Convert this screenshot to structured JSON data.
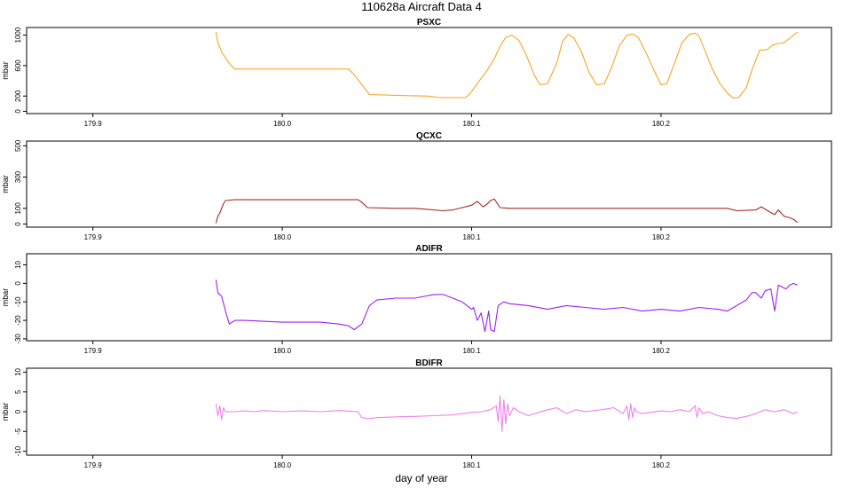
{
  "title": "110628a   Aircraft Data 4",
  "xlabel": "day of year",
  "chart_data": [
    {
      "type": "line",
      "title": "PSXC",
      "ylabel": "mbar",
      "color": "#F5A623",
      "xlim": [
        179.865,
        180.29
      ],
      "ylim": [
        -30,
        1100
      ],
      "x_ticks": [
        "179.9",
        "180.0",
        "180.1",
        "180.2"
      ],
      "y_ticks": [
        "0",
        "200",
        "600",
        "1000"
      ],
      "y_tick_values": [
        0,
        200,
        600,
        1000
      ],
      "series": [
        {
          "x": [
            179.965,
            179.966,
            179.968,
            179.97,
            179.973,
            179.975,
            179.98,
            180.0,
            180.02,
            180.035,
            180.038,
            180.042,
            180.046,
            180.06,
            180.077,
            180.083,
            180.097,
            180.1,
            180.104,
            180.108,
            180.112,
            180.115,
            180.118,
            180.121,
            180.125,
            180.129,
            180.133,
            180.136,
            180.14,
            180.145,
            180.148,
            180.151,
            180.154,
            180.158,
            180.162,
            180.166,
            180.17,
            180.174,
            180.178,
            180.182,
            180.185,
            180.188,
            180.192,
            180.197,
            180.2,
            180.203,
            180.207,
            180.211,
            180.215,
            180.218,
            180.22,
            180.223,
            180.227,
            180.231,
            180.235,
            180.238,
            180.241,
            180.245,
            180.248,
            180.252,
            180.256,
            180.259,
            180.262,
            180.265,
            180.268,
            180.272
          ],
          "y": [
            1040,
            900,
            780,
            700,
            600,
            555,
            555,
            555,
            555,
            555,
            480,
            350,
            220,
            210,
            200,
            180,
            180,
            260,
            400,
            530,
            690,
            850,
            970,
            1000,
            930,
            730,
            480,
            350,
            360,
            640,
            920,
            1010,
            960,
            780,
            510,
            350,
            360,
            580,
            860,
            1000,
            1015,
            970,
            770,
            500,
            350,
            360,
            620,
            900,
            1010,
            1025,
            990,
            810,
            560,
            370,
            240,
            175,
            180,
            310,
            540,
            800,
            810,
            870,
            890,
            900,
            960,
            1040
          ]
        }
      ]
    },
    {
      "type": "line",
      "title": "QCXC",
      "ylabel": "mbar",
      "color": "#A52A2A",
      "xlim": [
        179.865,
        180.29
      ],
      "ylim": [
        -20,
        530
      ],
      "x_ticks": [
        "179.9",
        "180.0",
        "180.1",
        "180.2"
      ],
      "y_ticks": [
        "0",
        "100",
        "300",
        "500"
      ],
      "y_tick_values": [
        0,
        100,
        300,
        500
      ],
      "series": [
        {
          "x": [
            179.965,
            179.966,
            179.967,
            179.969,
            179.97,
            179.975,
            180.0,
            180.02,
            180.035,
            180.04,
            180.042,
            180.045,
            180.06,
            180.07,
            180.075,
            180.085,
            180.09,
            180.095,
            180.1,
            180.103,
            180.106,
            180.108,
            180.11,
            180.112,
            180.115,
            180.12,
            180.15,
            180.2,
            180.22,
            180.235,
            180.24,
            180.25,
            180.253,
            180.257,
            180.26,
            180.262,
            180.265,
            180.268,
            180.27,
            180.272
          ],
          "y": [
            5,
            50,
            70,
            130,
            150,
            155,
            155,
            155,
            155,
            155,
            140,
            105,
            100,
            100,
            95,
            85,
            90,
            105,
            120,
            145,
            110,
            125,
            150,
            160,
            105,
            100,
            100,
            100,
            100,
            100,
            85,
            90,
            110,
            80,
            60,
            90,
            50,
            40,
            30,
            10
          ]
        }
      ]
    },
    {
      "type": "line",
      "title": "ADIFR",
      "ylabel": "mbar",
      "color": "#A020F0",
      "xlim": [
        179.865,
        180.29
      ],
      "ylim": [
        -31,
        16
      ],
      "x_ticks": [
        "179.9",
        "180.0",
        "180.1",
        "180.2"
      ],
      "y_ticks": [
        "-30",
        "-20",
        "-10",
        "0",
        "10"
      ],
      "y_tick_values": [
        -30,
        -20,
        -10,
        0,
        10
      ],
      "series": [
        {
          "x": [
            179.965,
            179.966,
            179.968,
            179.97,
            179.972,
            179.975,
            179.98,
            180.0,
            180.02,
            180.03,
            180.035,
            180.038,
            180.042,
            180.046,
            180.05,
            180.06,
            180.07,
            180.075,
            180.08,
            180.085,
            180.09,
            180.095,
            180.1,
            180.101,
            180.103,
            180.105,
            180.107,
            180.109,
            180.11,
            180.112,
            180.114,
            180.117,
            180.12,
            180.13,
            180.14,
            180.15,
            180.16,
            180.17,
            180.18,
            180.19,
            180.2,
            180.21,
            180.22,
            180.23,
            180.235,
            180.24,
            180.245,
            180.248,
            180.25,
            180.253,
            180.255,
            180.258,
            180.26,
            180.262,
            180.264,
            180.266,
            180.268,
            180.27,
            180.272
          ],
          "y": [
            2,
            -5,
            -7,
            -15,
            -22,
            -20,
            -20,
            -21,
            -21,
            -22,
            -23,
            -25,
            -22,
            -12,
            -9,
            -8,
            -8,
            -7,
            -6,
            -6,
            -8,
            -10,
            -14,
            -13,
            -20,
            -16,
            -26,
            -15,
            -25,
            -26,
            -12,
            -10,
            -11,
            -12,
            -14,
            -12,
            -13,
            -14,
            -13,
            -15,
            -14,
            -15,
            -13,
            -14,
            -15,
            -12,
            -9,
            -5,
            -5,
            -8,
            -4,
            -3,
            -15,
            -1,
            -2,
            -3,
            -1,
            0,
            -1
          ]
        }
      ]
    },
    {
      "type": "line",
      "title": "BDIFR",
      "ylabel": "mbar",
      "color": "#EE82EE",
      "xlim": [
        179.865,
        180.29
      ],
      "ylim": [
        -11,
        11
      ],
      "x_ticks": [
        "179.9",
        "180.0",
        "180.1",
        "180.2"
      ],
      "y_ticks": [
        "-10",
        "-5",
        "0",
        "5",
        "10"
      ],
      "y_tick_values": [
        -10,
        -5,
        0,
        5,
        10
      ],
      "series": [
        {
          "x": [
            179.965,
            179.966,
            179.967,
            179.968,
            179.969,
            179.97,
            179.975,
            179.98,
            179.985,
            179.99,
            180.0,
            180.01,
            180.02,
            180.03,
            180.04,
            180.042,
            180.045,
            180.05,
            180.06,
            180.07,
            180.08,
            180.09,
            180.095,
            180.1,
            180.105,
            180.11,
            180.113,
            180.114,
            180.115,
            180.116,
            180.117,
            180.118,
            180.119,
            180.12,
            180.122,
            180.125,
            180.13,
            180.14,
            180.145,
            180.15,
            180.155,
            180.16,
            180.17,
            180.175,
            180.18,
            180.182,
            180.183,
            180.184,
            180.185,
            180.186,
            180.187,
            180.19,
            180.2,
            180.205,
            180.21,
            180.215,
            180.218,
            180.219,
            180.22,
            180.222,
            180.225,
            180.23,
            180.235,
            180.24,
            180.245,
            180.25,
            180.255,
            180.26,
            180.265,
            180.27,
            180.272
          ],
          "y": [
            2,
            -1,
            1.5,
            -2,
            1,
            0,
            0,
            0.2,
            0,
            0.3,
            0,
            0.2,
            0,
            0.3,
            0,
            -1.5,
            -1.8,
            -1.5,
            -1.3,
            -1.2,
            -1,
            -0.8,
            -0.5,
            -0.2,
            0,
            0.5,
            1.5,
            -2.5,
            4,
            -5,
            3,
            -3,
            2,
            -1,
            1,
            0,
            -1,
            0.5,
            1,
            -0.5,
            0.5,
            0,
            0.6,
            1,
            -0.5,
            1.5,
            -2,
            2,
            -1.5,
            1,
            0,
            -0.5,
            0.2,
            0,
            0.5,
            0,
            1.5,
            -1.5,
            1,
            -0.5,
            0,
            -1,
            -1.5,
            -1.7,
            -1.2,
            -0.5,
            0.5,
            0,
            0.5,
            -0.5,
            0
          ]
        }
      ]
    }
  ]
}
